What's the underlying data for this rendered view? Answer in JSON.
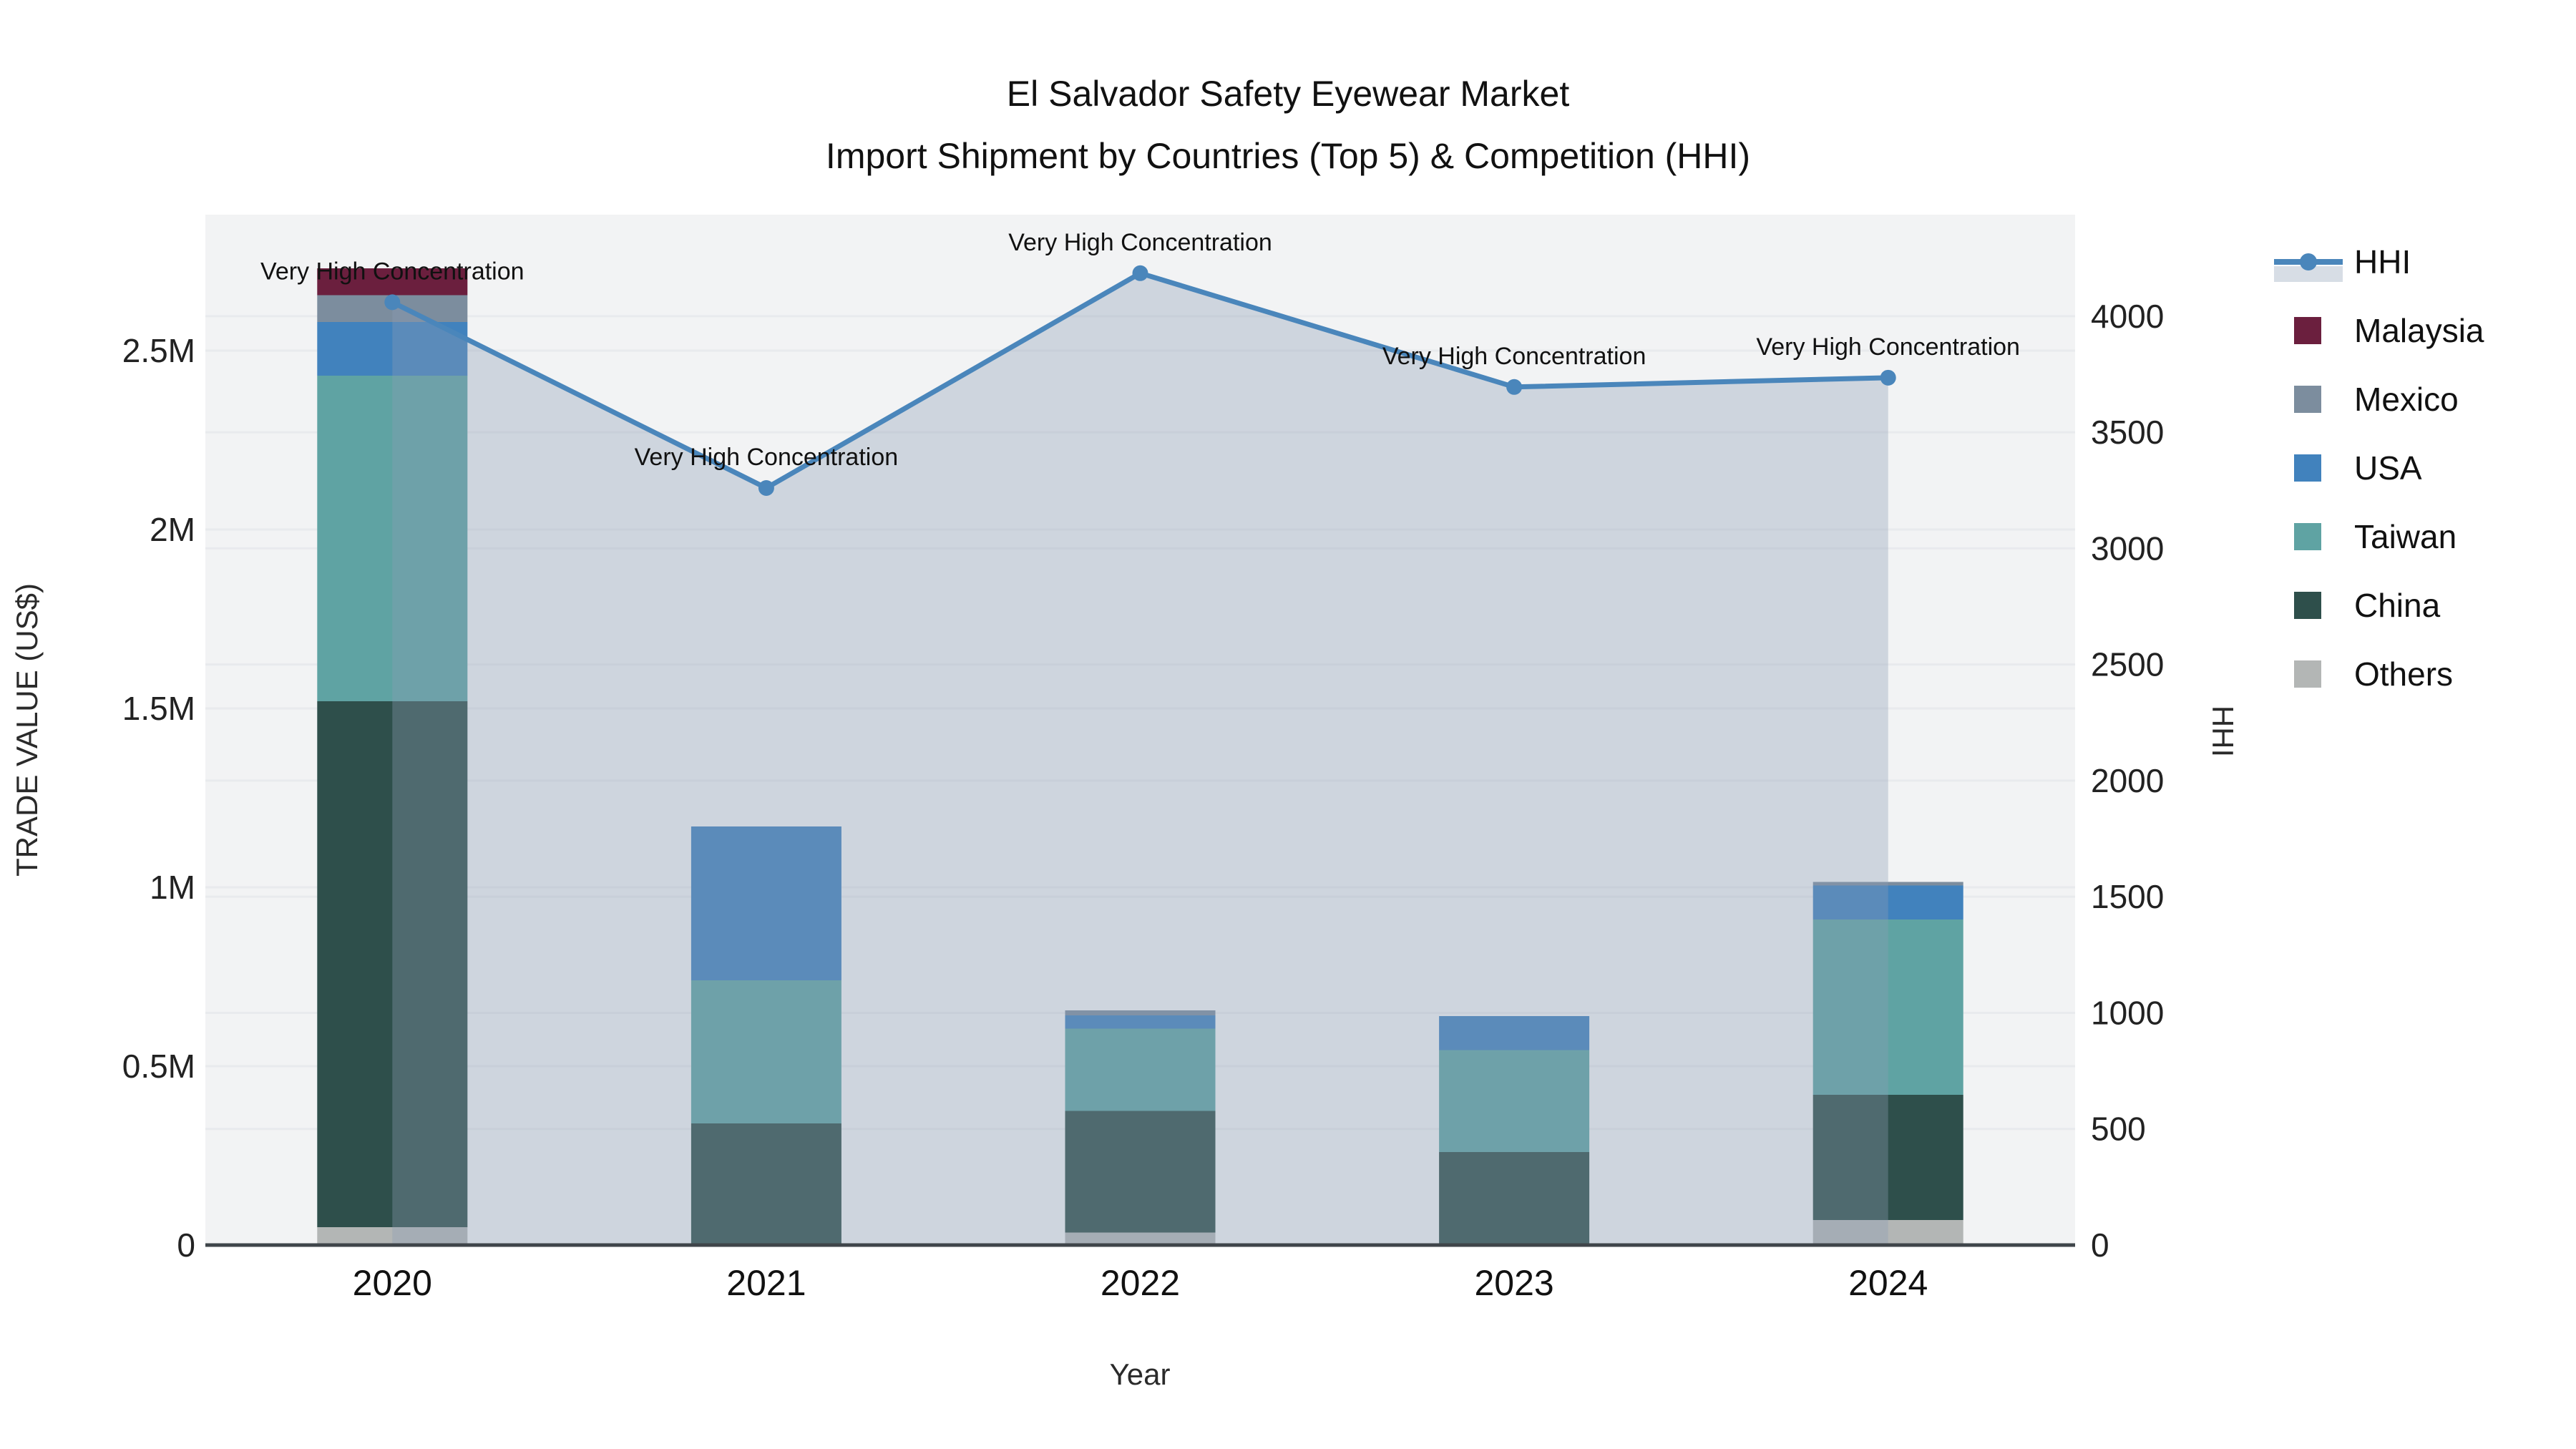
{
  "title": {
    "line1": "El Salvador Safety Eyewear Market",
    "line2": "Import Shipment by Countries (Top 5) & Competition (HHI)"
  },
  "axes": {
    "x_title": "Year",
    "y_left_title": "TRADE VALUE (US$)",
    "y_right_title": "HHI",
    "y_left_tick_labels": [
      "0",
      "0.5M",
      "1M",
      "1.5M",
      "2M",
      "2.5M"
    ],
    "y_left_tick_values": [
      0,
      500000,
      1000000,
      1500000,
      2000000,
      2500000
    ],
    "y_right_tick_labels": [
      "0",
      "500",
      "1000",
      "1500",
      "2000",
      "2500",
      "3000",
      "3500",
      "4000"
    ],
    "y_right_tick_values": [
      0,
      500,
      1000,
      1500,
      2000,
      2500,
      3000,
      3500,
      4000
    ]
  },
  "chart_data": {
    "type": "bar",
    "subtype": "stacked-bars-with-line",
    "categories": [
      "2020",
      "2021",
      "2022",
      "2023",
      "2024"
    ],
    "xlabel": "Year",
    "ylabel_left": "TRADE VALUE (US$)",
    "ylabel_right": "HHI",
    "ylim_left": [
      0,
      2880000
    ],
    "ylim_right": [
      0,
      4437
    ],
    "grid": true,
    "legend_position": "right",
    "series": [
      {
        "name": "Others",
        "type": "bar",
        "color": "#b3b6b5",
        "values": [
          50000,
          0,
          35000,
          0,
          70000
        ]
      },
      {
        "name": "China",
        "type": "bar",
        "color": "#2e4f4b",
        "values": [
          1470000,
          340000,
          340000,
          260000,
          350000
        ]
      },
      {
        "name": "Taiwan",
        "type": "bar",
        "color": "#5fa3a3",
        "values": [
          910000,
          400000,
          230000,
          285000,
          490000
        ]
      },
      {
        "name": "USA",
        "type": "bar",
        "color": "#4182bd",
        "values": [
          150000,
          430000,
          37000,
          95000,
          95000
        ]
      },
      {
        "name": "Mexico",
        "type": "bar",
        "color": "#7c8d9e",
        "values": [
          75000,
          0,
          14000,
          0,
          10000
        ]
      },
      {
        "name": "Malaysia",
        "type": "bar",
        "color": "#6b1f3e",
        "values": [
          75000,
          0,
          0,
          0,
          0
        ]
      }
    ],
    "line_series": {
      "name": "HHI",
      "type": "line+area",
      "axis": "right",
      "color": "#4a86bb",
      "area_fill": "rgba(139,157,180,0.35)",
      "values": [
        4060,
        3260,
        4185,
        3695,
        3735
      ]
    },
    "annotations": [
      {
        "category": "2020",
        "text": "Very High Concentration"
      },
      {
        "category": "2021",
        "text": "Very High Concentration"
      },
      {
        "category": "2022",
        "text": "Very High Concentration"
      },
      {
        "category": "2023",
        "text": "Very High Concentration"
      },
      {
        "category": "2024",
        "text": "Very High Concentration"
      }
    ],
    "legend_order": [
      "HHI",
      "Malaysia",
      "Mexico",
      "USA",
      "Taiwan",
      "China",
      "Others"
    ]
  },
  "colors": {
    "plot_background": "#f2f3f4",
    "gridline": "#e8eaed",
    "axis_spine": "#3f454a",
    "hhi_line": "#4a86bb"
  }
}
